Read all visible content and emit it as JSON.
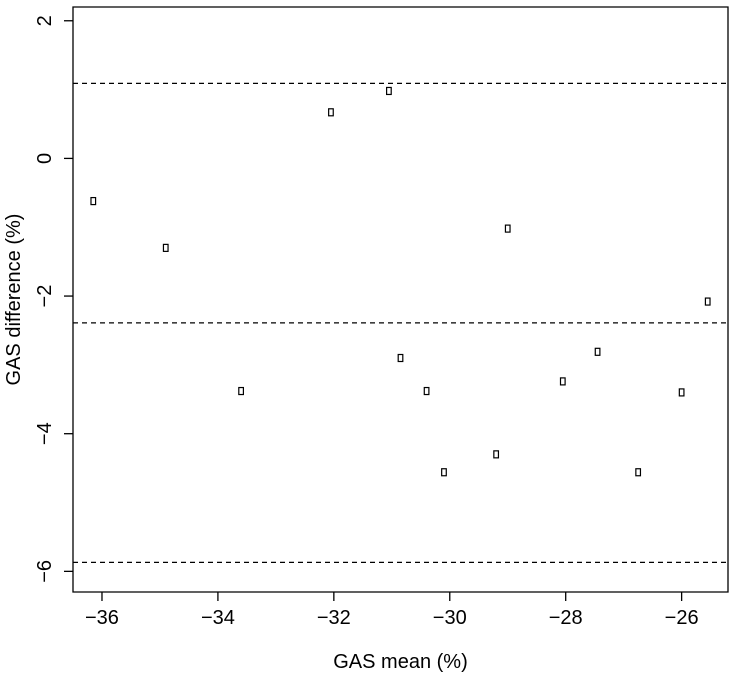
{
  "chart_data": {
    "type": "scatter",
    "xlabel": "GAS mean (%)",
    "ylabel": "GAS difference (%)",
    "xlim": [
      -36.5,
      -25.2
    ],
    "ylim": [
      -6.3,
      2.2
    ],
    "x_ticks": [
      -36,
      -34,
      -32,
      -30,
      -28,
      -26
    ],
    "y_ticks": [
      -6,
      -4,
      -2,
      0,
      2
    ],
    "grid": false,
    "reference_lines": [
      1.09,
      -2.39,
      -5.87
    ],
    "points": [
      {
        "x": -36.15,
        "y": -0.62
      },
      {
        "x": -34.9,
        "y": -1.3
      },
      {
        "x": -33.6,
        "y": -3.38
      },
      {
        "x": -32.05,
        "y": 0.67
      },
      {
        "x": -31.05,
        "y": 0.98
      },
      {
        "x": -30.85,
        "y": -2.9
      },
      {
        "x": -30.4,
        "y": -3.38
      },
      {
        "x": -30.1,
        "y": -4.56
      },
      {
        "x": -29.2,
        "y": -4.3
      },
      {
        "x": -29.0,
        "y": -1.02
      },
      {
        "x": -28.05,
        "y": -3.24
      },
      {
        "x": -27.45,
        "y": -2.81
      },
      {
        "x": -26.75,
        "y": -4.56
      },
      {
        "x": -26.0,
        "y": -3.4
      },
      {
        "x": -25.55,
        "y": -2.08
      }
    ]
  }
}
